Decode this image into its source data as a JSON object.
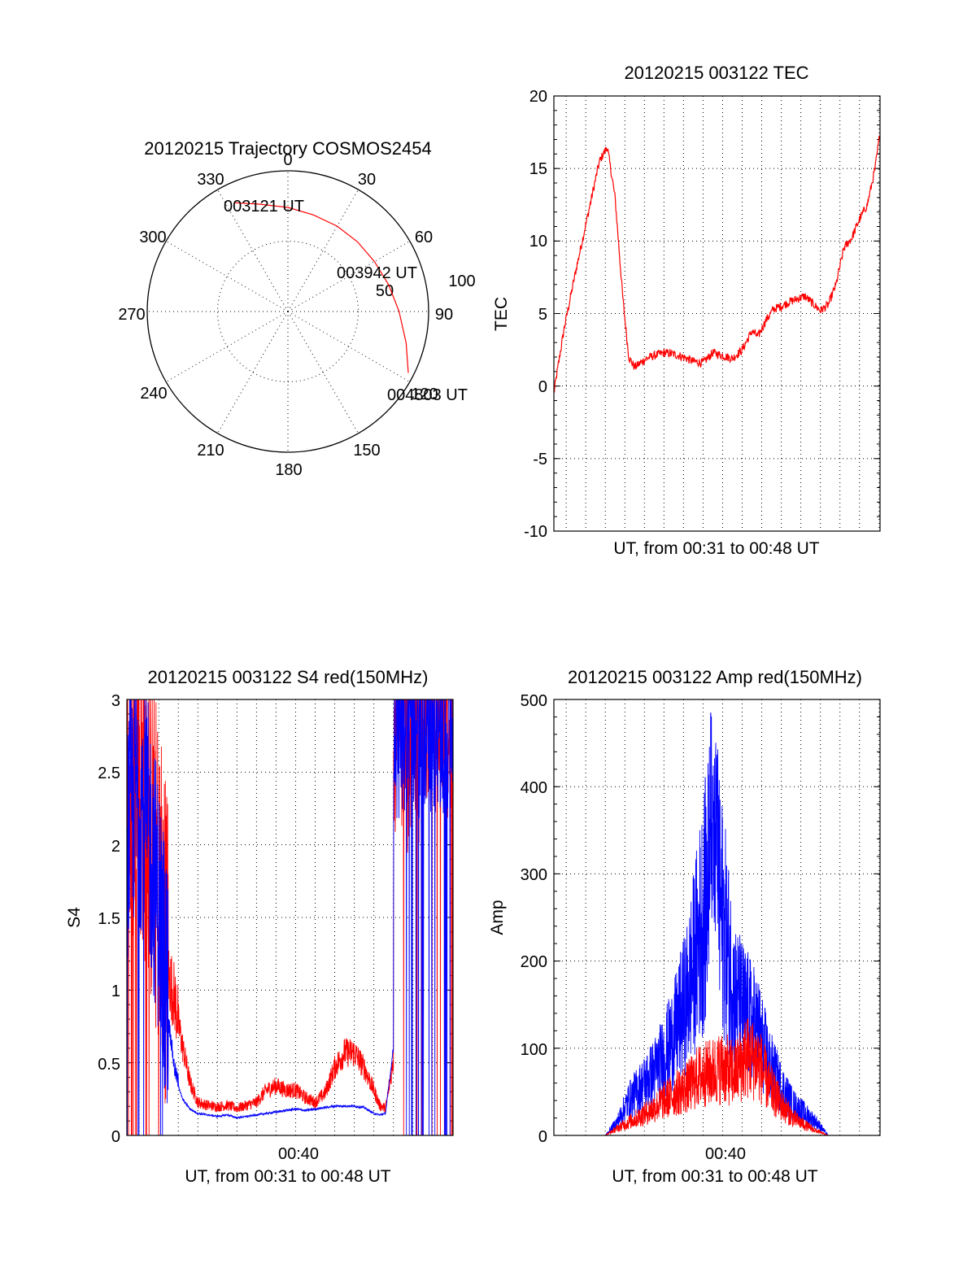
{
  "chart_data": [
    {
      "type": "polar",
      "title": "20120215 Trajectory COSMOS2454",
      "angle_labels": [
        "0",
        "30",
        "60",
        "90",
        "120",
        "150",
        "180",
        "210",
        "240",
        "270",
        "300",
        "330"
      ],
      "radius_labels": [
        "50",
        "100"
      ],
      "annotations": [
        "003121 UT",
        "003942 UT",
        "004803 UT"
      ],
      "trajectory": {
        "color": "#ff0000",
        "points": [
          {
            "az": 334,
            "r": 86
          },
          {
            "az": 345,
            "r": 79
          },
          {
            "az": 0,
            "r": 74
          },
          {
            "az": 15,
            "r": 71
          },
          {
            "az": 30,
            "r": 70
          },
          {
            "az": 45,
            "r": 70
          },
          {
            "az": 60,
            "r": 71
          },
          {
            "az": 75,
            "r": 74
          },
          {
            "az": 90,
            "r": 79
          },
          {
            "az": 105,
            "r": 87
          },
          {
            "az": 117,
            "r": 96
          }
        ]
      }
    },
    {
      "type": "line",
      "title": "20120215 003122 TEC",
      "ylabel": "TEC",
      "xlabel": "UT, from 00:31 to 00:48 UT",
      "ylim": [
        -10,
        20
      ],
      "yticks": [
        "-10",
        "-5",
        "0",
        "5",
        "10",
        "15",
        "20"
      ],
      "xlim": [
        31.37,
        48.05
      ],
      "series": [
        {
          "color": "#ff0000",
          "x": [
            31.37,
            31.6,
            31.9,
            32.2,
            32.5,
            32.9,
            33.3,
            33.7,
            34.1,
            34.5,
            34.9,
            35.2,
            35.5,
            35.8,
            36.1,
            36.5,
            37.0,
            37.5,
            38.0,
            38.5,
            39.0,
            39.5,
            40.0,
            40.5,
            41.0,
            41.5,
            41.8,
            42.2,
            42.6,
            43.0,
            43.4,
            43.8,
            44.2,
            44.6,
            45.0,
            45.4,
            45.8,
            46.2,
            46.6,
            47.0,
            47.4,
            47.8,
            48.05
          ],
          "y": [
            -0.5,
            1.5,
            4.0,
            6.0,
            8.0,
            10.5,
            13.0,
            15.5,
            16.5,
            13.0,
            6.0,
            2.0,
            1.3,
            1.6,
            1.9,
            2.1,
            2.3,
            2.2,
            2.0,
            1.7,
            1.6,
            2.3,
            2.1,
            1.9,
            2.5,
            3.8,
            3.4,
            4.5,
            5.3,
            5.5,
            5.8,
            6.0,
            6.2,
            5.7,
            5.2,
            5.6,
            7.0,
            9.5,
            10.2,
            11.5,
            12.5,
            15.0,
            17.5
          ]
        }
      ]
    },
    {
      "type": "line",
      "title": "20120215 003122 S4 red(150MHz)",
      "ylabel": "S4",
      "xlabel": "UT, from 00:31 to 00:48 UT",
      "ylim": [
        0,
        3
      ],
      "yticks": [
        "0",
        "0.5",
        "1",
        "1.5",
        "2",
        "2.5",
        "3"
      ],
      "xtick_label": "00:40",
      "xlim": [
        31.37,
        48.05
      ],
      "series": [
        {
          "color": "#ff0000",
          "x": [
            31.4,
            31.8,
            32.2,
            32.6,
            33.0,
            33.4,
            33.8,
            34.2,
            34.6,
            35.0,
            35.5,
            36.0,
            36.5,
            37.0,
            37.5,
            38.0,
            38.5,
            39.0,
            39.5,
            40.0,
            40.5,
            41.0,
            41.5,
            42.0,
            42.5,
            43.0,
            43.5,
            44.0,
            44.3,
            44.6,
            45.0
          ],
          "y": [
            2.0,
            2.3,
            2.2,
            1.8,
            1.5,
            1.1,
            0.9,
            0.6,
            0.35,
            0.22,
            0.2,
            0.19,
            0.2,
            0.18,
            0.2,
            0.22,
            0.3,
            0.33,
            0.3,
            0.3,
            0.25,
            0.22,
            0.28,
            0.45,
            0.55,
            0.55,
            0.45,
            0.3,
            0.2,
            0.18,
            0.5
          ]
        },
        {
          "color": "#0000ff",
          "x": [
            31.4,
            31.8,
            32.2,
            32.6,
            33.0,
            33.4,
            33.8,
            34.2,
            34.6,
            35.0,
            35.5,
            36.0,
            36.5,
            37.0,
            37.5,
            38.0,
            38.5,
            39.0,
            39.5,
            40.0,
            40.5,
            41.0,
            41.5,
            42.0,
            42.5,
            43.0,
            43.5,
            44.0,
            44.3,
            44.6,
            45.0
          ],
          "y": [
            1.9,
            2.2,
            2.1,
            1.8,
            1.4,
            0.9,
            0.45,
            0.25,
            0.18,
            0.15,
            0.14,
            0.13,
            0.14,
            0.12,
            0.13,
            0.14,
            0.15,
            0.16,
            0.17,
            0.18,
            0.17,
            0.18,
            0.19,
            0.2,
            0.2,
            0.2,
            0.19,
            0.15,
            0.14,
            0.15,
            0.6
          ]
        }
      ]
    },
    {
      "type": "line",
      "title": "20120215 003122 Amp red(150MHz)",
      "ylabel": "Amp",
      "xlabel": "UT, from 00:31 to 00:48 UT",
      "ylim": [
        0,
        500
      ],
      "yticks": [
        "0",
        "100",
        "200",
        "300",
        "400",
        "500"
      ],
      "xtick_label": "00:40",
      "xlim": [
        31.37,
        48.05
      ],
      "series": [
        {
          "color": "#ff0000",
          "x": [
            31.4,
            33.0,
            34.0,
            34.6,
            35.2,
            35.8,
            36.4,
            37.0,
            37.6,
            38.2,
            38.8,
            39.4,
            40.0,
            40.6,
            41.2,
            41.8,
            42.4,
            43.0,
            43.6,
            44.2,
            44.8,
            45.4,
            48.0
          ],
          "y": [
            0,
            0,
            0,
            8,
            15,
            22,
            30,
            40,
            48,
            55,
            68,
            72,
            78,
            70,
            90,
            85,
            55,
            35,
            20,
            12,
            5,
            0,
            0
          ]
        },
        {
          "color": "#0000ff",
          "x": [
            31.4,
            33.0,
            34.0,
            34.6,
            35.2,
            35.8,
            36.4,
            37.0,
            37.6,
            38.2,
            38.8,
            39.4,
            40.0,
            40.6,
            41.2,
            41.8,
            42.4,
            43.0,
            43.6,
            44.2,
            44.8,
            45.4,
            48.0
          ],
          "y": [
            0,
            0,
            0,
            15,
            40,
            55,
            70,
            90,
            120,
            160,
            230,
            300,
            250,
            160,
            140,
            120,
            80,
            55,
            35,
            25,
            15,
            0,
            0
          ]
        }
      ]
    }
  ]
}
